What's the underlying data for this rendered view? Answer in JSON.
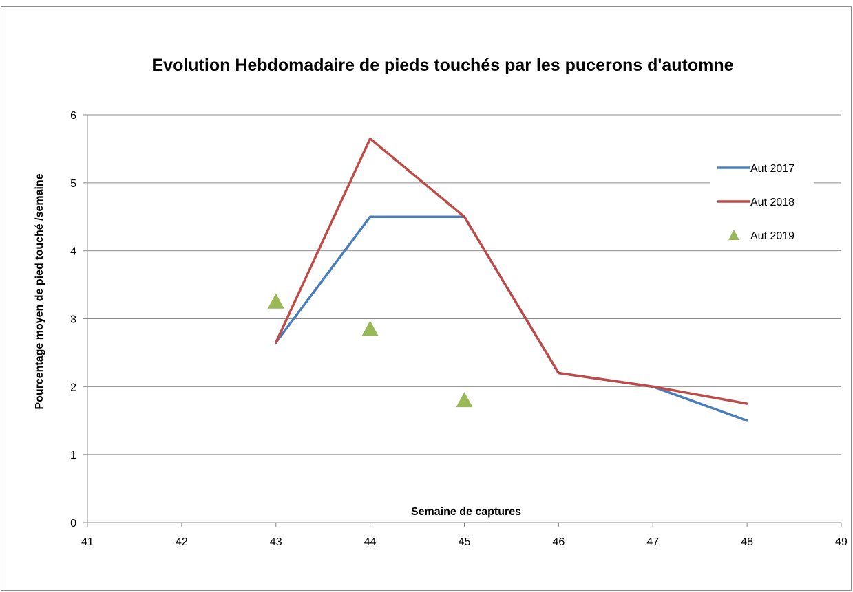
{
  "chart_data": {
    "type": "line",
    "title": "Evolution Hebdomadaire de pieds touchés par les pucerons d'automne",
    "xlabel": "Semaine de captures",
    "ylabel": "Pourcentage moyen de pied touché /semaine",
    "xlim": [
      41,
      49
    ],
    "ylim": [
      0,
      6
    ],
    "x_ticks": [
      "41",
      "42",
      "43",
      "44",
      "45",
      "46",
      "47",
      "48",
      "49"
    ],
    "y_ticks": [
      "0",
      "1",
      "2",
      "3",
      "4",
      "5",
      "6"
    ],
    "grid": "horizontal",
    "legend_position": "right",
    "series": [
      {
        "name": "Aut 2017",
        "kind": "line",
        "color": "#4a7ebb",
        "x": [
          43,
          44,
          45,
          46,
          47,
          48
        ],
        "y": [
          2.65,
          4.5,
          4.5,
          2.2,
          2.0,
          1.5
        ]
      },
      {
        "name": "Aut 2018",
        "kind": "line",
        "color": "#be4b48",
        "x": [
          43,
          44,
          45,
          46,
          47,
          48
        ],
        "y": [
          2.65,
          5.65,
          4.5,
          2.2,
          2.0,
          1.75
        ]
      },
      {
        "name": "Aut 2019",
        "kind": "marker-triangle",
        "color": "#98b954",
        "x": [
          43,
          44,
          45
        ],
        "y": [
          3.25,
          2.85,
          1.8
        ]
      }
    ]
  }
}
